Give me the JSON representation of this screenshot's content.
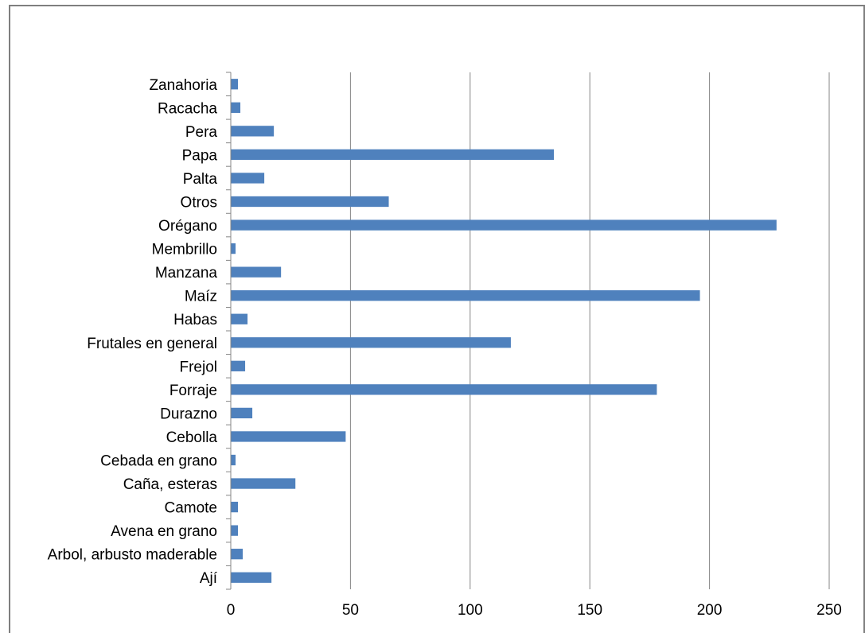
{
  "chart_data": {
    "type": "bar",
    "orientation": "horizontal",
    "title": "",
    "xlabel": "",
    "ylabel": "",
    "categories": [
      "Zanahoria",
      "Racacha",
      "Pera",
      "Papa",
      "Palta",
      "Otros",
      "Orégano",
      "Membrillo",
      "Manzana",
      "Maíz",
      "Habas",
      "Frutales en general",
      "Frejol",
      "Forraje",
      "Durazno",
      "Cebolla",
      "Cebada en grano",
      "Caña, esteras",
      "Camote",
      "Avena en grano",
      "Arbol, arbusto maderable",
      "Ají"
    ],
    "values": [
      3,
      4,
      18,
      135,
      14,
      66,
      228,
      2,
      21,
      196,
      7,
      117,
      6,
      178,
      9,
      48,
      2,
      27,
      3,
      3,
      5,
      17
    ],
    "xlim": [
      0,
      250
    ],
    "xticks": [
      "0",
      "50",
      "100",
      "150",
      "200",
      "250"
    ],
    "grid": "vertical",
    "legend": "none",
    "colors": {
      "bar": "#4F81BD",
      "grid": "#868686",
      "frame": "#7F7F7F",
      "text": "#000000"
    }
  }
}
